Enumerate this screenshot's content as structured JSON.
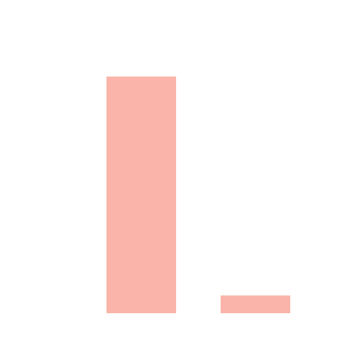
{
  "chart_data": {
    "type": "bar",
    "categories": [
      null,
      null
    ],
    "values": [
      100,
      7.5
    ],
    "color": "#fbb4a9",
    "ylim": [
      0,
      100
    ]
  }
}
